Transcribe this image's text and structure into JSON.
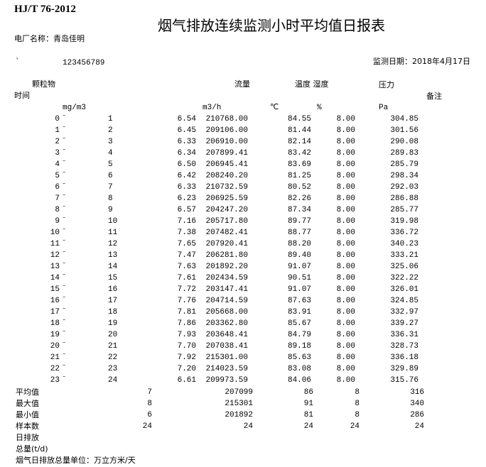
{
  "standard": "HJ/T 76-2012",
  "title": "烟气排放连续监测小时平均值日报表",
  "plant_label": "电厂名称：青岛佳明",
  "backtick": "`",
  "code": "123456789",
  "date_label": "监测日期：2018年4月17日",
  "headers": {
    "particulate": "颗粒物",
    "flow": "流量",
    "temp_hum": "温度 湿度",
    "pressure": "压力",
    "time": "时间",
    "remark": "备注",
    "unit_particulate": "mg/m3",
    "unit_flow": "m3/h",
    "unit_temp": "℃",
    "unit_hum": "%",
    "unit_pressure": "Pa"
  },
  "tilde": "~",
  "rows": [
    [
      "0",
      "1",
      "6.54",
      "210768.00",
      "84.55",
      "8.00",
      "304.85"
    ],
    [
      "1",
      "2",
      "6.45",
      "209106.00",
      "81.44",
      "8.00",
      "301.56"
    ],
    [
      "2",
      "3",
      "6.33",
      "206910.00",
      "82.14",
      "8.00",
      "290.08"
    ],
    [
      "3",
      "4",
      "6.34",
      "207899.41",
      "83.42",
      "8.00",
      "289.83"
    ],
    [
      "4",
      "5",
      "6.50",
      "206945.41",
      "83.69",
      "8.00",
      "285.79"
    ],
    [
      "5",
      "6",
      "6.42",
      "208240.20",
      "81.25",
      "8.00",
      "298.34"
    ],
    [
      "6",
      "7",
      "6.33",
      "210732.59",
      "80.52",
      "8.00",
      "292.03"
    ],
    [
      "7",
      "8",
      "6.23",
      "206925.59",
      "82.26",
      "8.00",
      "286.88"
    ],
    [
      "8",
      "9",
      "6.57",
      "204247.20",
      "87.34",
      "8.00",
      "285.77"
    ],
    [
      "9",
      "10",
      "7.16",
      "205717.80",
      "89.77",
      "8.00",
      "319.98"
    ],
    [
      "10",
      "11",
      "7.38",
      "207482.41",
      "88.77",
      "8.00",
      "336.72"
    ],
    [
      "11",
      "12",
      "7.65",
      "207920.41",
      "88.20",
      "8.00",
      "340.23"
    ],
    [
      "12",
      "13",
      "7.47",
      "206281.80",
      "89.40",
      "8.00",
      "333.21"
    ],
    [
      "13",
      "14",
      "7.63",
      "201892.20",
      "91.07",
      "8.00",
      "325.06"
    ],
    [
      "14",
      "15",
      "7.61",
      "202434.59",
      "90.51",
      "8.00",
      "322.22"
    ],
    [
      "15",
      "16",
      "7.72",
      "203147.41",
      "91.07",
      "8.00",
      "326.01"
    ],
    [
      "16",
      "17",
      "7.76",
      "204714.59",
      "87.63",
      "8.00",
      "324.85"
    ],
    [
      "17",
      "18",
      "7.81",
      "205668.00",
      "83.91",
      "8.00",
      "332.97"
    ],
    [
      "18",
      "19",
      "7.86",
      "203362.80",
      "85.67",
      "8.00",
      "339.27"
    ],
    [
      "19",
      "20",
      "7.93",
      "203648.41",
      "84.79",
      "8.00",
      "336.31"
    ],
    [
      "20",
      "21",
      "7.70",
      "207038.41",
      "89.18",
      "8.00",
      "328.73"
    ],
    [
      "21",
      "22",
      "7.92",
      "215301.00",
      "85.63",
      "8.00",
      "336.18"
    ],
    [
      "22",
      "23",
      "7.20",
      "214023.59",
      "83.08",
      "8.00",
      "329.89"
    ],
    [
      "23",
      "24",
      "6.61",
      "209973.59",
      "84.06",
      "8.00",
      "315.76"
    ]
  ],
  "summary": [
    [
      "平均值",
      "7",
      "207099",
      "86",
      "8",
      "316"
    ],
    [
      "最大值",
      "8",
      "215301",
      "91",
      "8",
      "340"
    ],
    [
      "最小值",
      "6",
      "201892",
      "81",
      "8",
      "286"
    ],
    [
      "样本数",
      "24",
      "24",
      "24",
      "24",
      "24"
    ]
  ],
  "footer": [
    "日排放",
    "总量(t/d)",
    "烟气日排放总量单位：万立方米/天"
  ]
}
